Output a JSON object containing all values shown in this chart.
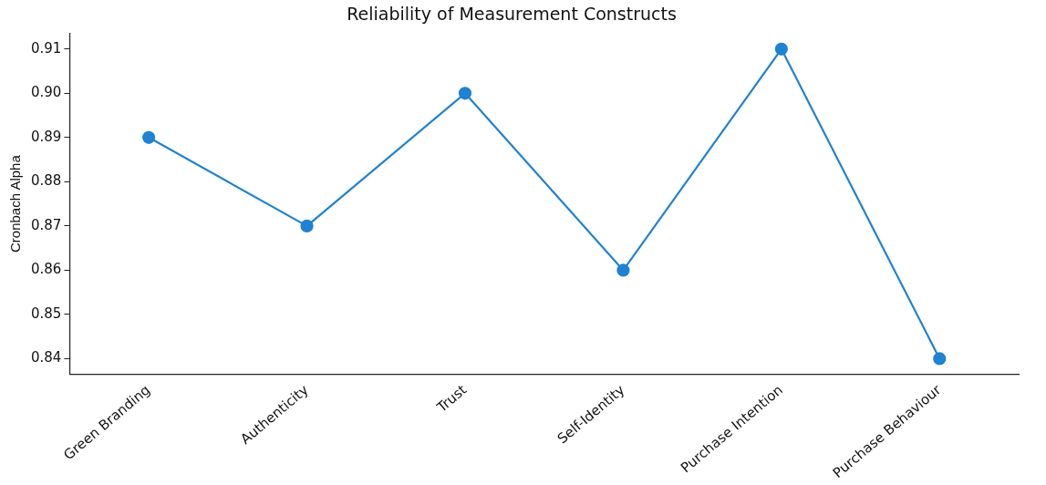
{
  "chart_data": {
    "type": "line",
    "title": "Reliability of Measurement Constructs",
    "ylabel": "Cronbach Alpha",
    "categories": [
      "Green Branding",
      "Authenticity",
      "Trust",
      "Self-Identity",
      "Purchase Intention",
      "Purchase Behaviour"
    ],
    "series": [
      {
        "color": "#1f82d2",
        "values": [
          0.89,
          0.87,
          0.9,
          0.86,
          0.91,
          0.84
        ]
      }
    ],
    "ylim": [
      0.8365,
      0.9135
    ],
    "yticks": [
      0.84,
      0.85,
      0.86,
      0.87,
      0.88,
      0.89,
      {
        "value": 0.9,
        "label": "0.90"
      },
      0.91
    ],
    "marker": "circle",
    "line_style": "solid",
    "grid": false,
    "legend": false
  }
}
